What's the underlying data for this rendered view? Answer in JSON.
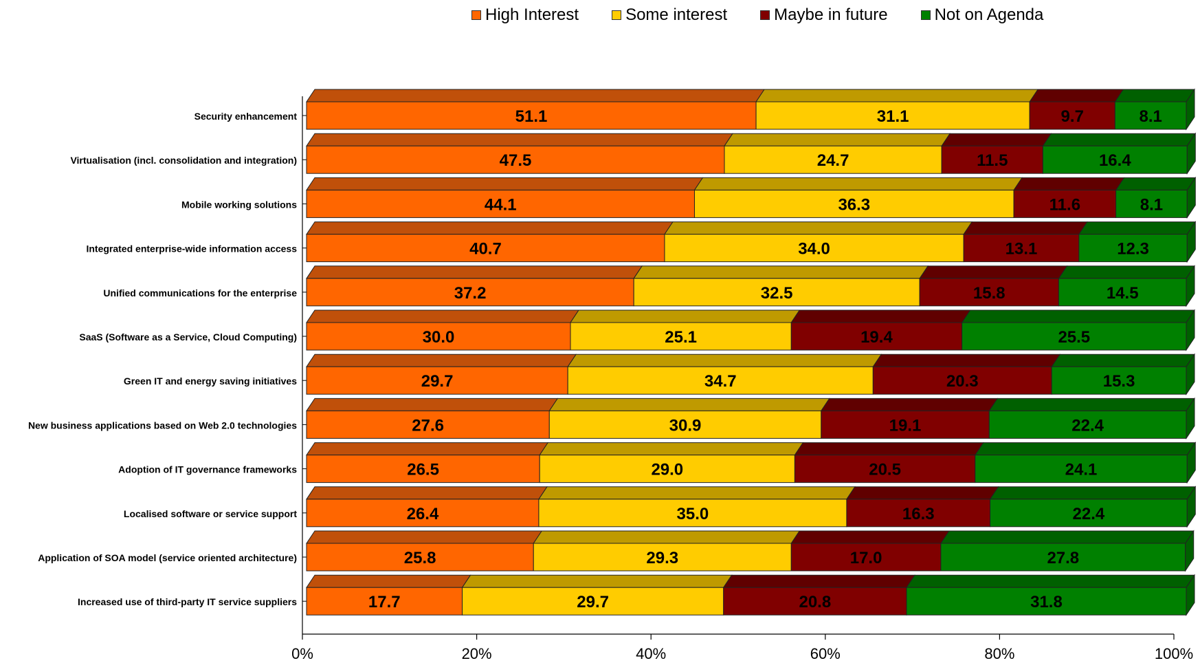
{
  "chart_data": {
    "type": "bar",
    "orientation": "horizontal",
    "stacked": true,
    "percent_stacked": true,
    "style_3d": true,
    "legend_position": "top",
    "categories": [
      "Security enhancement",
      "Virtualisation (incl. consolidation and integration)",
      "Mobile working solutions",
      "Integrated enterprise-wide information access",
      "Unified communications for the enterprise",
      "SaaS (Software as a Service, Cloud Computing)",
      "Green IT and energy saving initiatives",
      "New business applications based on Web 2.0 technologies",
      "Adoption of IT governance frameworks",
      "Localised software or service support",
      "Application of SOA model (service oriented architecture)",
      "Increased use of third-party IT service suppliers"
    ],
    "series": [
      {
        "name": "High Interest",
        "color": "#FF6600",
        "top_color": "#C0500A",
        "values": [
          51.1,
          47.5,
          44.1,
          40.7,
          37.2,
          30.0,
          29.7,
          27.6,
          26.5,
          26.4,
          25.8,
          17.7
        ]
      },
      {
        "name": "Some interest",
        "color": "#FFCC00",
        "top_color": "#BF9A00",
        "values": [
          31.1,
          24.7,
          36.3,
          34.0,
          32.5,
          25.1,
          34.7,
          30.9,
          29.0,
          35.0,
          29.3,
          29.7
        ]
      },
      {
        "name": "Maybe in future",
        "color": "#800000",
        "top_color": "#600000",
        "values": [
          9.7,
          11.5,
          11.6,
          13.1,
          15.8,
          19.4,
          20.3,
          19.1,
          20.5,
          16.3,
          17.0,
          20.8
        ]
      },
      {
        "name": "Not on Agenda",
        "color": "#008000",
        "top_color": "#006000",
        "values": [
          8.1,
          16.4,
          8.1,
          12.3,
          14.5,
          25.5,
          15.3,
          22.4,
          24.1,
          22.4,
          27.8,
          31.8
        ]
      }
    ],
    "value_labels": [
      [
        "51.1",
        "31.1",
        "9.7",
        "8.1"
      ],
      [
        "47.5",
        "24.7",
        "11.5",
        "16.4"
      ],
      [
        "44.1",
        "36.3",
        "11.6",
        "8.1"
      ],
      [
        "40.7",
        "34.0",
        "13.1",
        "12.3"
      ],
      [
        "37.2",
        "32.5",
        "15.8",
        "14.5"
      ],
      [
        "30.0",
        "25.1",
        "19.4",
        "25.5"
      ],
      [
        "29.7",
        "34.7",
        "20.3",
        "15.3"
      ],
      [
        "27.6",
        "30.9",
        "19.1",
        "22.4"
      ],
      [
        "26.5",
        "29.0",
        "20.5",
        "24.1"
      ],
      [
        "26.4",
        "35.0",
        "16.3",
        "22.4"
      ],
      [
        "25.8",
        "29.3",
        "17.0",
        "27.8"
      ],
      [
        "17.7",
        "29.7",
        "20.8",
        "31.8"
      ]
    ],
    "x_ticks": [
      "0%",
      "20%",
      "40%",
      "60%",
      "80%",
      "100%"
    ],
    "xlim": [
      0,
      100
    ]
  }
}
